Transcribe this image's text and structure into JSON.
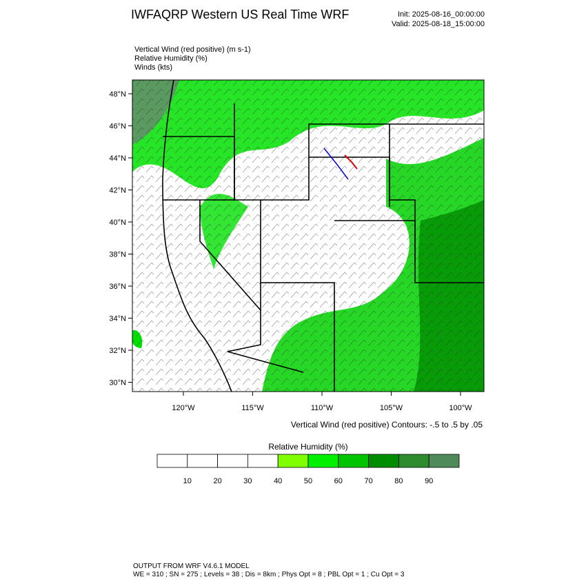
{
  "header": {
    "title": "IWFAQRP Western US Real Time WRF",
    "init": "Init: 2025-08-16_00:00:00",
    "valid": "Valid: 2025-08-18_15:00:00"
  },
  "fields": [
    "Vertical Wind (red positive)   (m s-1)",
    "Relative Humidity   (%)",
    "Winds   (kts)"
  ],
  "map": {
    "lat_labels": [
      "48°N",
      "46°N",
      "44°N",
      "42°N",
      "40°N",
      "38°N",
      "36°N",
      "34°N",
      "32°N",
      "30°N"
    ],
    "lon_labels": [
      "120°W",
      "115°W",
      "110°W",
      "105°W",
      "100°W"
    ],
    "contour_note": "Vertical Wind (red positive) Contours: -.5 to .5 by .05"
  },
  "colorbar": {
    "title": "Relative Humidity   (%)",
    "labels": [
      10,
      20,
      30,
      40,
      50,
      60,
      70,
      80,
      90
    ]
  },
  "footer": [
    "OUTPUT FROM WRF V4.6.1 MODEL",
    "WE = 310 ; SN = 275 ; Levels = 38 ; Dis = 8km ; Phys Opt = 8 ; PBL Opt = 1 ; Cu Opt = 3"
  ]
}
